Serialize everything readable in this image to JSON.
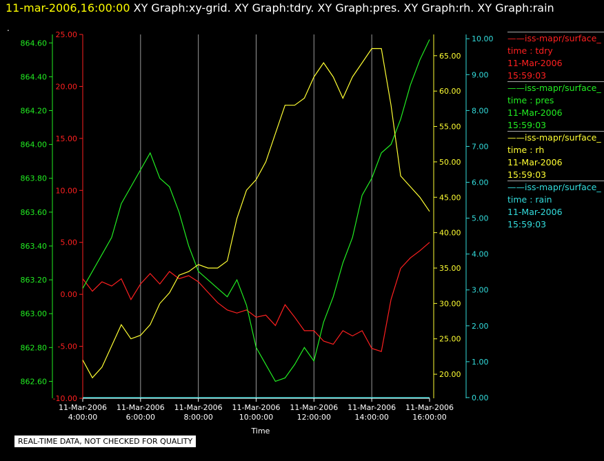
{
  "header": {
    "time": "11-mar-2006,16:00:00",
    "titles": "XY Graph:xy-grid.  XY Graph:tdry.  XY Graph:pres.  XY Graph:rh.  XY Graph:rain",
    "dot": "."
  },
  "footer_note": "REAL-TIME DATA, NOT CHECKED FOR QUALITY",
  "legend": [
    {
      "name": "iss-mapr/surface_",
      "var": "time : tdry",
      "date": "11-Mar-2006",
      "time": "15:59:03",
      "color": "#ff2020"
    },
    {
      "name": "iss-mapr/surface_",
      "var": "time : pres",
      "date": "11-Mar-2006",
      "time": "15:59:03",
      "color": "#22ee22"
    },
    {
      "name": "iss-mapr/surface_",
      "var": "time : rh",
      "date": "11-Mar-2006",
      "time": "15:59:03",
      "color": "#ffff33"
    },
    {
      "name": "iss-mapr/surface_",
      "var": "time : rain",
      "date": "11-Mar-2006",
      "time": "15:59:03",
      "color": "#33dddd"
    }
  ],
  "chart_data": {
    "type": "line",
    "xlabel": "Time",
    "x_range": [
      "2006-03-11 04:00",
      "2006-03-11 16:00"
    ],
    "x_ticks": [
      {
        "date": "11-Mar-2006",
        "time": "4:00:00"
      },
      {
        "date": "11-Mar-2006",
        "time": "6:00:00"
      },
      {
        "date": "11-Mar-2006",
        "time": "8:00:00"
      },
      {
        "date": "11-Mar-2006",
        "time": "10:00:00"
      },
      {
        "date": "11-Mar-2006",
        "time": "12:00:00"
      },
      {
        "date": "11-Mar-2006",
        "time": "14:00:00"
      },
      {
        "date": "11-Mar-2006",
        "time": "16:00:00"
      }
    ],
    "grid": "vertical lines at x ticks",
    "axes": {
      "pres": {
        "color": "#22ee22",
        "ylim": [
          862.5,
          864.65
        ],
        "ticks": [
          "864.60",
          "864.40",
          "864.20",
          "864.00",
          "863.80",
          "863.60",
          "863.40",
          "863.20",
          "863.00",
          "862.80",
          "862.60"
        ]
      },
      "tdry": {
        "color": "#ff2020",
        "ylim": [
          -10,
          25
        ],
        "ticks": [
          "25.00",
          "20.00",
          "15.00",
          "10.00",
          "5.00",
          "0.00",
          "-5.00",
          "-10.00"
        ]
      },
      "rh": {
        "color": "#ffff33",
        "ylim": [
          16.6,
          68.0
        ],
        "ticks": [
          "65.00",
          "60.00",
          "55.00",
          "50.00",
          "45.00",
          "40.00",
          "35.00",
          "30.00",
          "25.00",
          "20.00"
        ]
      },
      "rain": {
        "color": "#33dddd",
        "ylim": [
          -0.02,
          10.12
        ],
        "ticks": [
          "10.00",
          "9.00",
          "8.00",
          "7.00",
          "6.00",
          "5.00",
          "4.00",
          "3.00",
          "2.00",
          "1.00",
          "0.00"
        ]
      }
    },
    "series": [
      {
        "name": "time : tdry",
        "axis": "tdry",
        "x": [
          "04:00",
          "04:20",
          "04:40",
          "05:00",
          "05:20",
          "05:40",
          "06:00",
          "06:20",
          "06:40",
          "07:00",
          "07:20",
          "07:40",
          "08:00",
          "08:20",
          "08:40",
          "09:00",
          "09:20",
          "09:40",
          "10:00",
          "10:20",
          "10:40",
          "11:00",
          "11:20",
          "11:40",
          "12:00",
          "12:20",
          "12:40",
          "13:00",
          "13:20",
          "13:40",
          "14:00",
          "14:20",
          "14:40",
          "15:00",
          "15:20",
          "15:40",
          "16:00"
        ],
        "values": [
          1.5,
          0.3,
          1.2,
          0.8,
          1.5,
          -0.5,
          1.0,
          2.0,
          1.0,
          2.2,
          1.5,
          1.8,
          1.2,
          0.2,
          -0.8,
          -1.5,
          -1.8,
          -1.5,
          -2.2,
          -2.0,
          -3.0,
          -1.0,
          -2.2,
          -3.5,
          -3.5,
          -4.5,
          -4.8,
          -3.5,
          -4.0,
          -3.5,
          -5.2,
          -5.5,
          -0.5,
          2.5,
          3.5,
          4.2,
          5.0
        ]
      },
      {
        "name": "time : pres",
        "axis": "pres",
        "x": [
          "04:00",
          "04:20",
          "04:40",
          "05:00",
          "05:20",
          "05:40",
          "06:00",
          "06:20",
          "06:40",
          "07:00",
          "07:20",
          "07:40",
          "08:00",
          "08:20",
          "08:40",
          "09:00",
          "09:20",
          "09:40",
          "10:00",
          "10:20",
          "10:40",
          "11:00",
          "11:20",
          "11:40",
          "12:00",
          "12:20",
          "12:40",
          "13:00",
          "13:20",
          "13:40",
          "14:00",
          "14:20",
          "14:40",
          "15:00",
          "15:20",
          "15:40",
          "16:00"
        ],
        "values": [
          863.15,
          863.25,
          863.35,
          863.45,
          863.65,
          863.75,
          863.85,
          863.95,
          863.8,
          863.75,
          863.6,
          863.4,
          863.25,
          863.2,
          863.15,
          863.1,
          863.2,
          863.05,
          862.8,
          862.7,
          862.6,
          862.62,
          862.7,
          862.8,
          862.72,
          862.95,
          863.1,
          863.3,
          863.45,
          863.7,
          863.8,
          863.95,
          864.0,
          864.15,
          864.35,
          864.5,
          864.62
        ]
      },
      {
        "name": "time : rh",
        "axis": "rh",
        "x": [
          "04:00",
          "04:20",
          "04:40",
          "05:00",
          "05:20",
          "05:40",
          "06:00",
          "06:20",
          "06:40",
          "07:00",
          "07:20",
          "07:40",
          "08:00",
          "08:20",
          "08:40",
          "09:00",
          "09:20",
          "09:40",
          "10:00",
          "10:20",
          "10:40",
          "11:00",
          "11:20",
          "11:40",
          "12:00",
          "12:20",
          "12:40",
          "13:00",
          "13:20",
          "13:40",
          "14:00",
          "14:20",
          "14:40",
          "15:00",
          "15:20",
          "15:40",
          "16:00"
        ],
        "values": [
          22.0,
          19.5,
          21.0,
          24.0,
          27.0,
          25.0,
          25.5,
          27.0,
          30.0,
          31.5,
          34.0,
          34.5,
          35.5,
          35.0,
          35.0,
          36.0,
          42.0,
          46.0,
          47.5,
          50.0,
          54.0,
          58.0,
          58.0,
          59.0,
          62.0,
          64.0,
          62.0,
          59.0,
          62.0,
          64.0,
          66.0,
          66.0,
          58.0,
          48.0,
          46.5,
          45.0,
          43.0
        ]
      },
      {
        "name": "time : rain",
        "axis": "rain",
        "x": [
          "04:00",
          "16:00"
        ],
        "values": [
          0.0,
          0.0
        ]
      }
    ]
  }
}
